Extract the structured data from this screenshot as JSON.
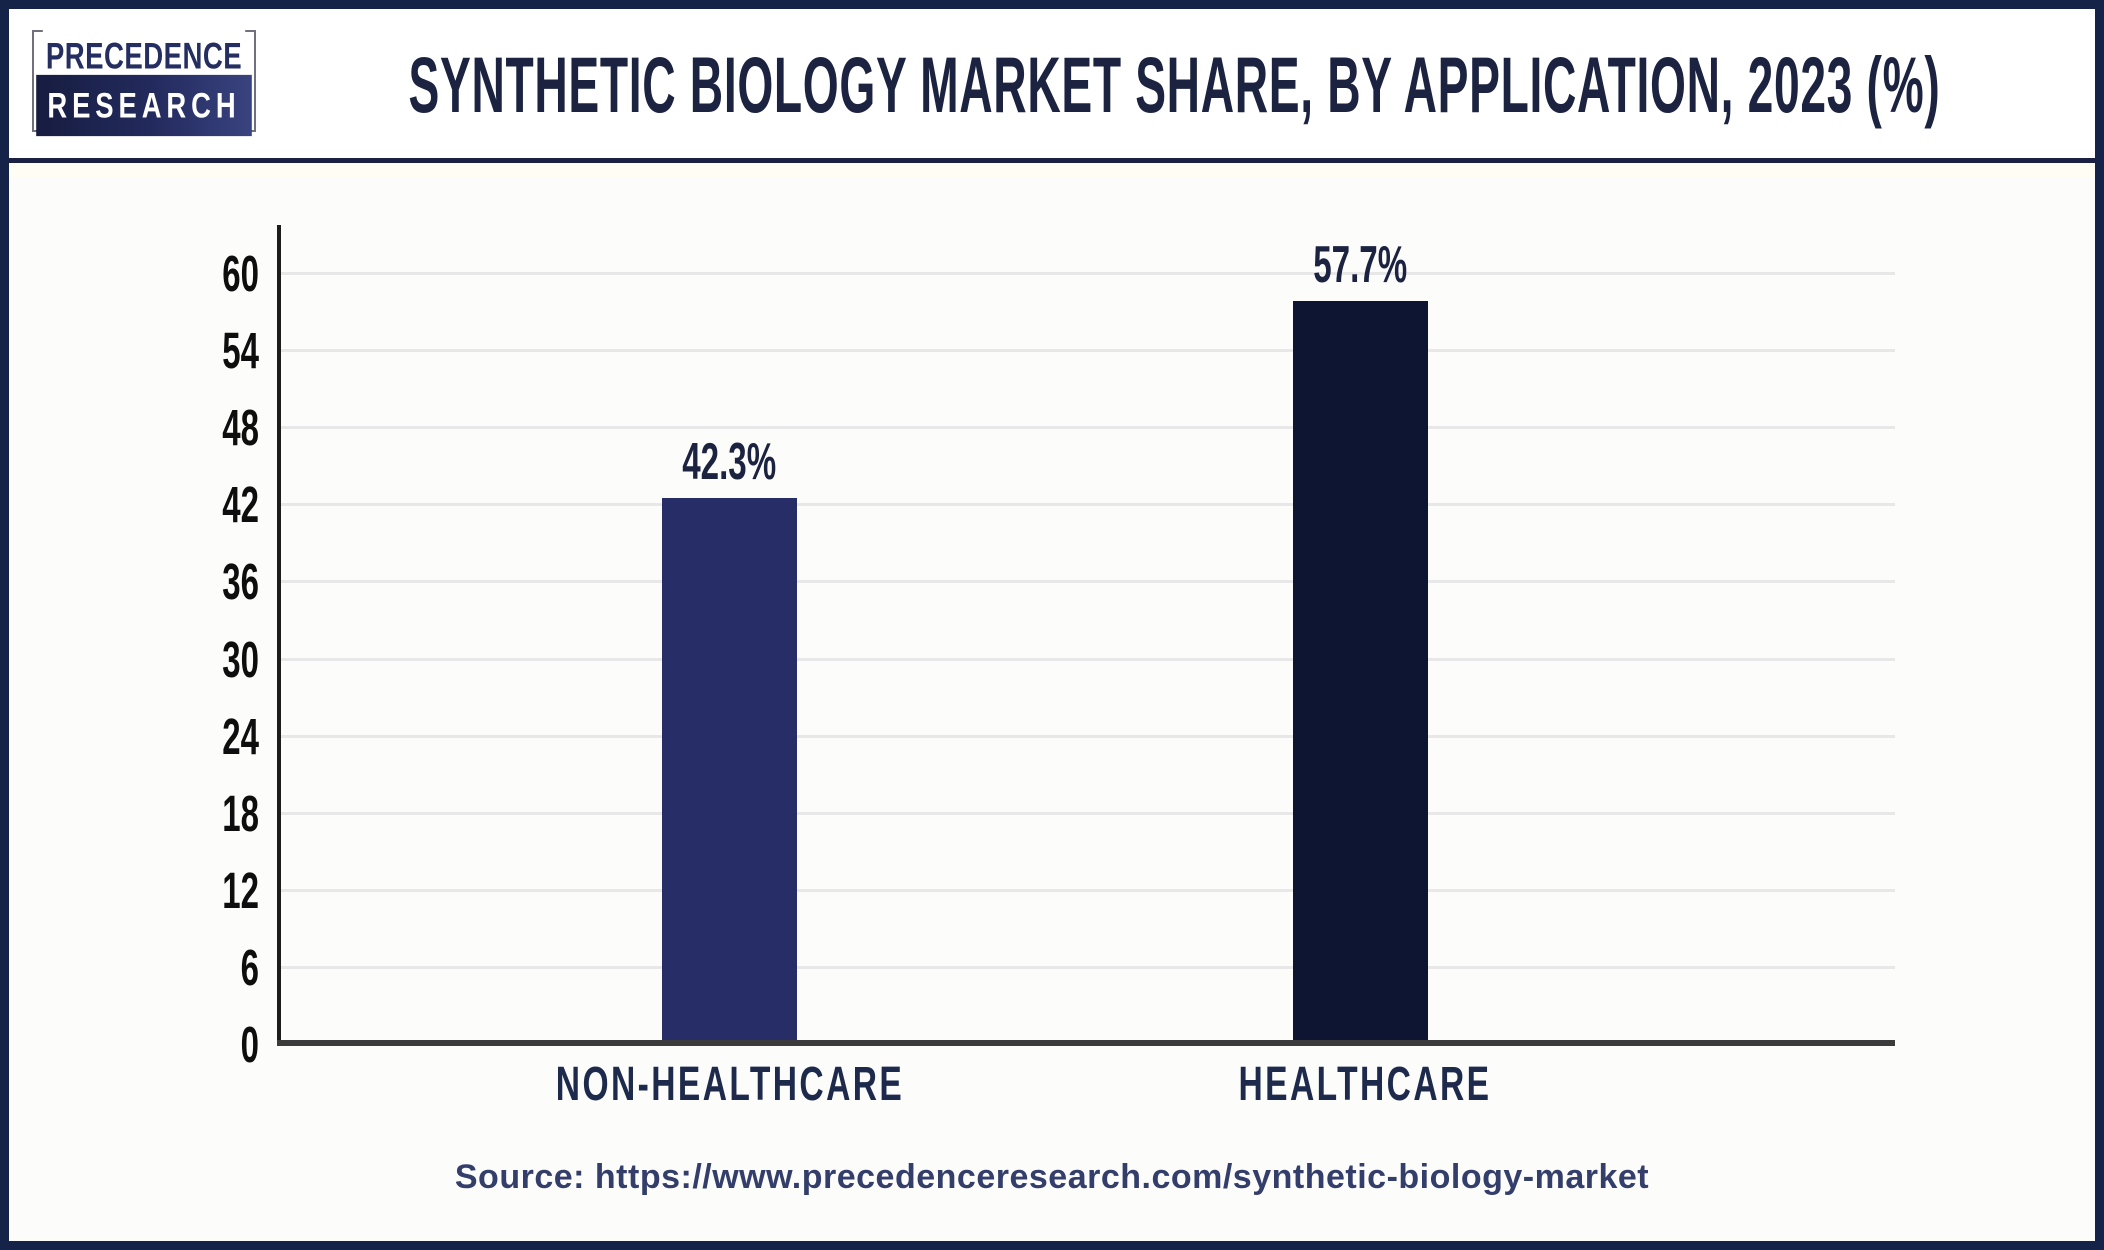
{
  "header": {
    "logo": {
      "top_text": "PRECEDENCE",
      "bottom_text": "RESEARCH"
    }
  },
  "chart_data": {
    "type": "bar",
    "title": "SYNTHETIC BIOLOGY MARKET SHARE, BY APPLICATION, 2023 (%)",
    "categories": [
      "NON-HEALTHCARE",
      "HEALTHCARE"
    ],
    "values": [
      42.3,
      57.7
    ],
    "value_labels": [
      "42.3%",
      "57.7%"
    ],
    "bar_colors": [
      "#272e67",
      "#0d1533"
    ],
    "xlabel": "",
    "ylabel": "",
    "ylim": [
      0,
      60
    ],
    "yticks": [
      0,
      6,
      12,
      18,
      24,
      30,
      36,
      42,
      48,
      54,
      60
    ],
    "grid": "horizontal-on",
    "legend": "none"
  },
  "source": {
    "text": "Source: https://www.precedenceresearch.com/synthetic-biology-market"
  },
  "colors": {
    "frame_border": "#152348",
    "separator": "#1b2144",
    "title_text": "#1b2340",
    "tick_text": "#0e0e0e",
    "category_text": "#1d2a4c",
    "source_text": "#333e6b",
    "gridline": "#e8e8e8",
    "y_axis": "#1c1c1c",
    "x_axis": "#3b3b3b",
    "logo_navy": "#232b5e"
  }
}
